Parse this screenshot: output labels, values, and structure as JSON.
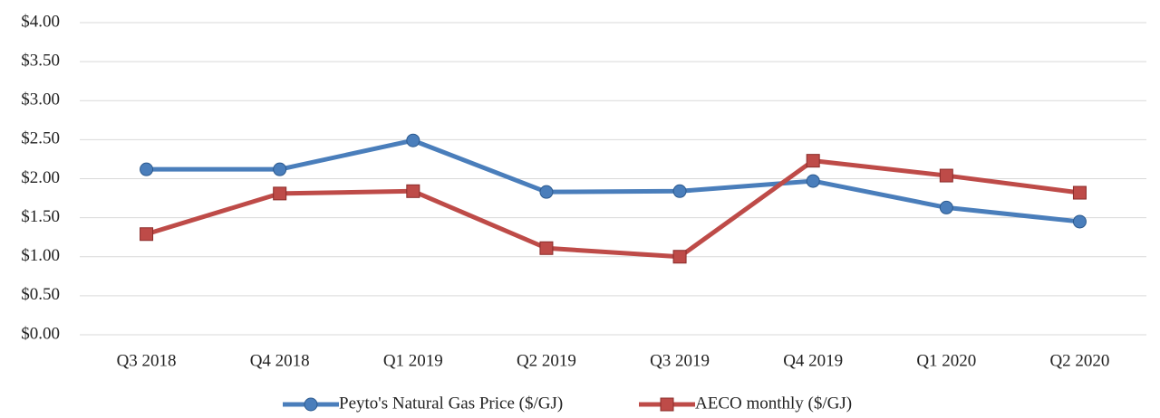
{
  "chart_data": {
    "type": "line",
    "categories": [
      "Q3 2018",
      "Q4 2018",
      "Q1 2019",
      "Q2 2019",
      "Q3 2019",
      "Q4 2019",
      "Q1 2020",
      "Q2 2020"
    ],
    "series": [
      {
        "name": "Peyto's Natural Gas Price ($/GJ)",
        "color": "#4a7ebb",
        "marker": "circle",
        "values": [
          2.12,
          2.12,
          2.49,
          1.83,
          1.84,
          1.97,
          1.63,
          1.45
        ]
      },
      {
        "name": "AECO monthly ($/GJ)",
        "color": "#be4b48",
        "marker": "square",
        "values": [
          1.29,
          1.81,
          1.84,
          1.11,
          1.0,
          2.23,
          2.04,
          1.82
        ]
      }
    ],
    "ylim": [
      0,
      4
    ],
    "yticks": [
      {
        "value": 0,
        "label": "$0.00"
      },
      {
        "value": 0.5,
        "label": "$0.50"
      },
      {
        "value": 1,
        "label": "$1.00"
      },
      {
        "value": 1.5,
        "label": "$1.50"
      },
      {
        "value": 2,
        "label": "$2.00"
      },
      {
        "value": 2.5,
        "label": "$2.50"
      },
      {
        "value": 3,
        "label": "$3.00"
      },
      {
        "value": 3.5,
        "label": "$3.50"
      },
      {
        "value": 4,
        "label": "$4.00"
      }
    ],
    "grid": true,
    "legend": "bottom"
  }
}
